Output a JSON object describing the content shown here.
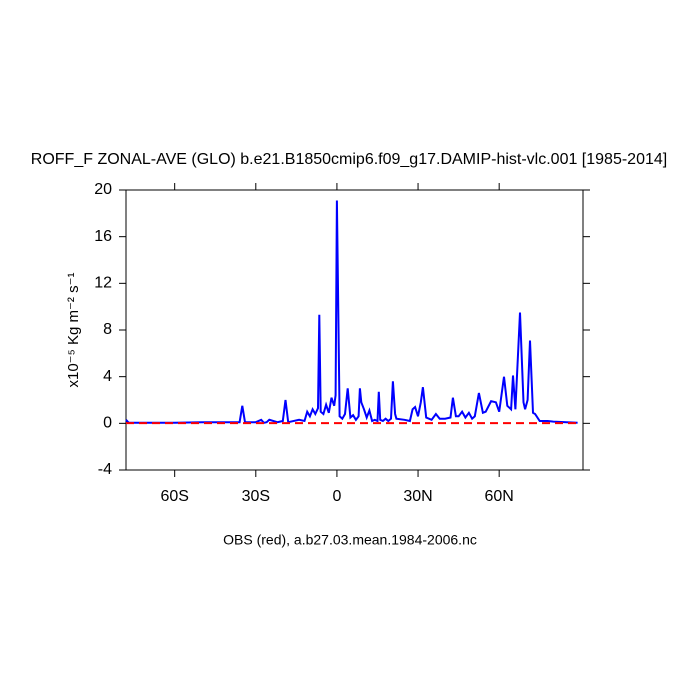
{
  "chart_data": {
    "type": "line",
    "title": "ROFF_F ZONAL-AVE (GLO) b.e21.B1850cmip6.f09_g17.DAMIP-hist-vlc.001 [1985-2014]",
    "y_label": "x10⁻⁵ Kg m⁻² s⁻¹",
    "footer": "OBS (red), a.b27.03.mean.1984-2006.nc",
    "xlim": [
      -78,
      91
    ],
    "ylim": [
      -4,
      20
    ],
    "xticks": [
      {
        "value": -60,
        "label": "60S"
      },
      {
        "value": -30,
        "label": "30S"
      },
      0,
      {
        "value": 30,
        "label": "30N"
      },
      {
        "value": 60,
        "label": "60N"
      }
    ],
    "yticks": [
      -4,
      0,
      4,
      8,
      12,
      16,
      20
    ],
    "series": [
      {
        "color": "#0000ff",
        "dashed": false,
        "x": [
          -78,
          -77,
          -70,
          -60,
          -50,
          -40,
          -36,
          -35,
          -34,
          -30,
          -28,
          -27,
          -26,
          -25,
          -22,
          -20,
          -19,
          -18,
          -14,
          -12,
          -11,
          -10,
          -9,
          -8,
          -7,
          -6.5,
          -6,
          -5,
          -4,
          -3,
          -2,
          -1,
          -0.5,
          0,
          1,
          2,
          3,
          4,
          5,
          6,
          7,
          8,
          8.5,
          9,
          10,
          11,
          12,
          13,
          14,
          15,
          15.5,
          16,
          17,
          18,
          19,
          20,
          20.7,
          21.5,
          22,
          25,
          27,
          28,
          28.9,
          30,
          31,
          31.8,
          33,
          35,
          36.6,
          38,
          40,
          42,
          42.9,
          44,
          45,
          46.3,
          47.5,
          48.8,
          50,
          51,
          52.5,
          54,
          55,
          57,
          58.8,
          60,
          61.8,
          63,
          64.4,
          65.1,
          66,
          67.7,
          69,
          69.6,
          70.5,
          71.4,
          72.5,
          73.3,
          75,
          78,
          80,
          85,
          89
        ],
        "values": [
          0.3,
          0.05,
          0.05,
          0.05,
          0.1,
          0.1,
          0.1,
          1.5,
          0.1,
          0.1,
          0.3,
          0.05,
          0.1,
          0.3,
          0.1,
          0.2,
          2.0,
          0.1,
          0.3,
          0.2,
          1.0,
          0.6,
          1.2,
          0.8,
          1.3,
          9.3,
          1.0,
          0.8,
          1.6,
          0.9,
          2.2,
          1.5,
          2.4,
          19.1,
          0.6,
          0.4,
          0.8,
          3.0,
          0.5,
          0.7,
          0.3,
          0.6,
          3.0,
          1.8,
          1.2,
          0.5,
          1.1,
          0.2,
          0.3,
          0.2,
          2.7,
          0.3,
          0.2,
          0.4,
          0.2,
          0.4,
          3.6,
          0.8,
          0.4,
          0.3,
          0.2,
          1.2,
          1.4,
          0.6,
          1.8,
          3.1,
          0.5,
          0.3,
          0.8,
          0.4,
          0.4,
          0.5,
          2.2,
          0.6,
          0.6,
          1.0,
          0.5,
          0.9,
          0.4,
          0.6,
          2.6,
          0.9,
          1.0,
          1.9,
          1.8,
          1.0,
          4.0,
          1.5,
          1.2,
          4.1,
          1.2,
          9.5,
          1.8,
          1.2,
          2.0,
          7.1,
          0.9,
          0.8,
          0.2,
          0.2,
          0.15,
          0.1,
          0.05
        ]
      },
      {
        "color": "#ff0000",
        "dashed": true,
        "x": [
          -78,
          -40,
          0,
          40,
          89
        ],
        "values": [
          0.02,
          0.02,
          0.02,
          0.02,
          0.02
        ]
      }
    ]
  }
}
